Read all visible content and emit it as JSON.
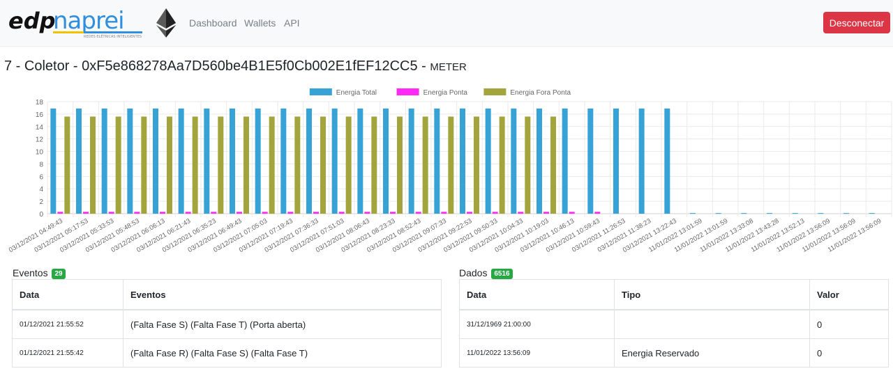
{
  "nav": {
    "brand_left": "edp",
    "brand_right": "naprei",
    "brand_tagline": "REDES ELÉTRICAS INTELIGENTES",
    "links": [
      "Dashboard",
      "Wallets",
      "API"
    ],
    "logout_label": "Desconectar"
  },
  "title": {
    "main": "7 - Coletor - 0xF5e868278Aa7D560be4B1E5f0Cb002E1fEF12CC5 - ",
    "type": "METER"
  },
  "colors": {
    "total": "#36a2d6",
    "ponta": "#ff29f5",
    "fora_ponta": "#a3a53c",
    "danger": "#dc3545",
    "success": "#28a745"
  },
  "chart_data": {
    "type": "bar",
    "legend_position": "top",
    "grid": true,
    "ylim": [
      0,
      18
    ],
    "yticks": [
      0,
      2,
      4,
      6,
      8,
      10,
      12,
      14,
      16,
      18
    ],
    "categories": [
      "03/12/2021 04:49:43",
      "03/12/2021 05:17:53",
      "03/12/2021 05:33:53",
      "03/12/2021 05:48:53",
      "03/12/2021 06:06:13",
      "03/12/2021 06:21:43",
      "03/12/2021 06:35:23",
      "03/12/2021 06:49:43",
      "03/12/2021 07:05:03",
      "03/12/2021 07:19:43",
      "03/12/2021 07:36:33",
      "03/12/2021 07:51:03",
      "03/12/2021 08:06:43",
      "03/12/2021 08:23:33",
      "03/12/2021 08:52:43",
      "03/12/2021 09:07:33",
      "03/12/2021 09:22:53",
      "03/12/2021 09:50:33",
      "03/12/2021 10:04:33",
      "03/12/2021 10:19:03",
      "03/12/2021 10:46:13",
      "03/12/2021 10:59:43",
      "03/12/2021 11:26:53",
      "03/12/2021 11:38:23",
      "03/12/2021 13:22:43",
      "11/01/2022 13:01:59",
      "11/01/2022 13:01:59",
      "11/01/2022 13:33:08",
      "11/01/2022 13:43:28",
      "11/01/2022 13:52:13",
      "11/01/2022 13:56:09",
      "11/01/2022 13:56:09",
      "11/01/2022 13:56:09"
    ],
    "series": [
      {
        "name": "Energia Total",
        "values": [
          16.9,
          16.9,
          16.9,
          16.9,
          16.9,
          16.9,
          16.9,
          16.9,
          16.9,
          16.9,
          16.9,
          16.9,
          16.9,
          16.9,
          16.9,
          16.9,
          16.9,
          16.9,
          16.9,
          16.9,
          16.9,
          16.9,
          16.9,
          16.9,
          16.9,
          0.1,
          0.1,
          0.1,
          0.1,
          0.1,
          0.1,
          0.1,
          0.1
        ]
      },
      {
        "name": "Energia Ponta",
        "values": [
          0.3,
          0.3,
          0.3,
          0.3,
          0.3,
          0.3,
          0.3,
          0.3,
          0.3,
          0.3,
          0.3,
          0.3,
          0.3,
          0.3,
          0.3,
          0.3,
          0.3,
          0.3,
          0.3,
          0.3,
          0.3,
          0.3,
          0,
          0,
          0,
          0,
          0,
          0,
          0,
          0,
          0,
          0,
          0
        ]
      },
      {
        "name": "Energia Fora Ponta",
        "values": [
          15.6,
          15.6,
          15.6,
          15.6,
          15.6,
          15.6,
          15.6,
          15.6,
          15.6,
          15.6,
          15.6,
          15.6,
          15.6,
          15.6,
          15.6,
          15.6,
          15.6,
          15.6,
          15.6,
          15.6,
          0,
          0,
          0,
          0,
          0,
          0,
          0,
          0,
          0,
          0,
          0,
          0,
          0
        ]
      }
    ]
  },
  "eventos": {
    "label": "Eventos",
    "count": "29",
    "columns": [
      "Data",
      "Eventos"
    ],
    "rows": [
      {
        "data": "01/12/2021 21:55:52",
        "eventos": "(Falta Fase S) (Falta Fase T) (Porta aberta)"
      },
      {
        "data": "01/12/2021 21:55:42",
        "eventos": "(Falta Fase R) (Falta Fase S) (Falta Fase T)"
      }
    ]
  },
  "dados": {
    "label": "Dados",
    "count": "6516",
    "columns": [
      "Data",
      "Tipo",
      "Valor"
    ],
    "rows": [
      {
        "data": "31/12/1969 21:00:00",
        "tipo": "",
        "valor": "0"
      },
      {
        "data": "11/01/2022 13:56:09",
        "tipo": "Energia Reservado",
        "valor": "0"
      }
    ]
  }
}
